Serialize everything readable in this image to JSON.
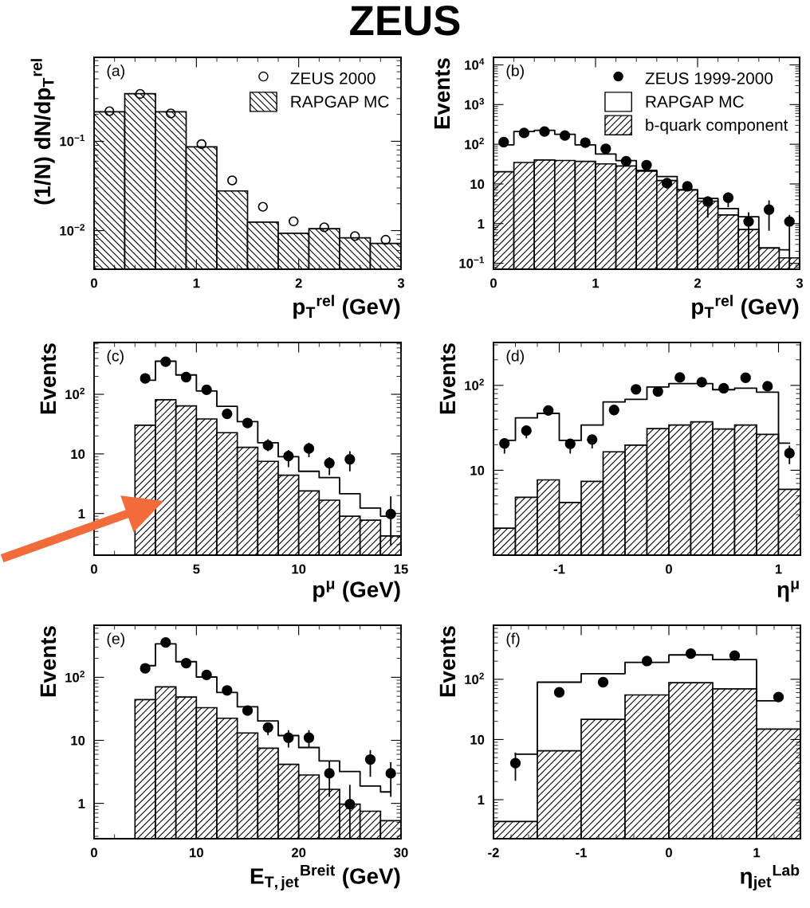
{
  "chart_data": [
    {
      "type": "histogram",
      "title": "ZEUS",
      "ylabel": "(1/N) dN/dp$_{T}$$^{rel}$",
      "xlabel": "p$_{T}$$^{rel}$ (GeV)",
      "annotations": [
        "(a)"
      ],
      "log": true,
      "legend": "top right",
      "bins": [
        0,
        0.3,
        0.6,
        0.9,
        1.2,
        1.5,
        1.8,
        2.1,
        2.4,
        2.7,
        3.0
      ],
      "xlim": [
        0,
        3
      ],
      "xticks": [
        0,
        1,
        2,
        3
      ],
      "ylim": [
        0.0037,
        0.87
      ],
      "yticks": [
        {
          "value": 0.01,
          "label": "10$^{−2}$"
        },
        {
          "value": 0.1,
          "label": "10$^{−1}$"
        }
      ],
      "series": [
        {
          "name": "ZEUS 2000",
          "type": "scatter",
          "marker": "circle",
          "color": "#000000",
          "x": [
            0.15,
            0.45,
            0.75,
            1.05,
            1.35,
            1.65,
            1.95,
            2.25,
            2.55,
            2.85
          ],
          "values": [
            0.217,
            0.339,
            0.205,
            0.093,
            0.0365,
            0.0185,
            0.0127,
            0.0109,
            0.0087,
            0.0079
          ]
        },
        {
          "name": "RAPGAP MC",
          "type": "histogram",
          "color": "#000000",
          "values": [
            0.214,
            0.341,
            0.214,
            0.0867,
            0.0278,
            0.01245,
            0.00934,
            0.0105,
            0.0083,
            0.0072
          ]
        }
      ]
    },
    {
      "type": "histogram",
      "ylabel": "Events",
      "xlabel": "p$_{T}$$^{rel}$ (GeV)",
      "annotations": [
        "(b)"
      ],
      "log": true,
      "legend": "top right",
      "bins": [
        0,
        0.2,
        0.4,
        0.6,
        0.8,
        1.0,
        1.2,
        1.4,
        1.6,
        1.8,
        2.0,
        2.2,
        2.4,
        2.6,
        2.8,
        3.0
      ],
      "xlim": [
        0,
        3
      ],
      "xticks": [
        0,
        1,
        2,
        3
      ],
      "ylim": [
        0.071,
        15500
      ],
      "yticks": [
        {
          "value": 0.1,
          "label": "10$^{−1}$"
        },
        1,
        10,
        {
          "value": 100,
          "label": "10$^{2}$"
        },
        {
          "value": 1000,
          "label": "10$^{3}$"
        },
        {
          "value": 10000,
          "label": "10$^{4}$"
        }
      ],
      "series": [
        {
          "name": "ZEUS 1999-2000",
          "type": "scatter",
          "marker": "circle",
          "color": "#000000",
          "x": [
            0.1,
            0.3,
            0.5,
            0.7,
            0.9,
            1.1,
            1.3,
            1.5,
            1.7,
            1.9,
            2.1,
            2.3,
            2.5,
            2.7,
            2.9
          ],
          "values": [
            113,
            193,
            209,
            166,
            110,
            77,
            37.5,
            29.8,
            10.5,
            8.7,
            3.6,
            4.5,
            1.13,
            2.25,
            1.13
          ],
          "errors": [
            null,
            null,
            null,
            null,
            null,
            null,
            null,
            null,
            [
              7.7,
              13.2
            ],
            [
              6.6,
              10.8
            ],
            [
              1.42,
              4.86
            ],
            [
              2.6,
              6.1
            ],
            [
              0.071,
              1.94
            ],
            [
              0.66,
              3.86
            ],
            [
              0.071,
              1.66
            ]
          ]
        },
        {
          "name": "RAPGAP MC",
          "type": "step",
          "color": "#000000",
          "x": [
            0.1,
            0.3,
            0.5,
            0.7,
            0.9,
            1.1,
            1.3,
            1.5,
            1.7,
            1.9,
            2.1,
            2.3,
            2.5,
            2.7,
            2.9
          ],
          "values": [
            97,
            209,
            225,
            179,
            97,
            57,
            38.6,
            21.9,
            15.4,
            7.1,
            4.3,
            2.4,
            1.49,
            0.244,
            0.219
          ]
        },
        {
          "name": "b-quark component",
          "type": "histogram",
          "color": "#000000",
          "values": [
            20.3,
            34.7,
            40,
            39,
            37,
            32,
            28.4,
            20.9,
            12.2,
            7.1,
            3.7,
            1.66,
            0.71,
            0.244,
            0.137
          ]
        }
      ]
    },
    {
      "type": "histogram",
      "ylabel": "Events",
      "xlabel": "p$^{μ}$ (GeV)",
      "annotations": [
        "(c)"
      ],
      "log": true,
      "bins": [
        2,
        3,
        4,
        5,
        6,
        7,
        8,
        9,
        10,
        11,
        12,
        13,
        14,
        15
      ],
      "xlim": [
        0,
        15
      ],
      "xticks": [
        0,
        5,
        10,
        15
      ],
      "ylim": [
        0.2,
        740
      ],
      "yticks": [
        1,
        10,
        {
          "value": 100,
          "label": "10$^{2}$"
        }
      ],
      "series": [
        {
          "type": "scatter",
          "marker": "circle",
          "color": "#000000",
          "x": [
            2.5,
            3.5,
            4.5,
            5.5,
            6.5,
            7.5,
            8.5,
            9.5,
            10.5,
            11.5,
            12.5,
            13.5,
            14.5
          ],
          "values": [
            185,
            352,
            194,
            119,
            47,
            33,
            13.9,
            9.2,
            12.3,
            7.0,
            8.1,
            null,
            0.98
          ],
          "errors": [
            null,
            null,
            null,
            null,
            null,
            null,
            [
              11.1,
              17.6
            ],
            [
              6.0,
              11.6
            ],
            [
              8.8,
              15.4
            ],
            [
              4.4,
              8.8
            ],
            [
              5.1,
              11.1
            ],
            null,
            [
              0.29,
              1.94
            ]
          ]
        },
        {
          "type": "step",
          "color": "#000000",
          "x": [
            2.5,
            3.5,
            4.5,
            5.5,
            6.5,
            7.5,
            8.5,
            9.5,
            10.5,
            11.5,
            12.5,
            13.5,
            14.5
          ],
          "values": [
            172,
            359,
            211,
            114,
            63,
            34.8,
            15.4,
            9.0,
            5.1,
            4.0,
            2.15,
            1.23,
            0.9
          ]
        },
        {
          "type": "histogram",
          "color": "#000000",
          "values": [
            30.2,
            81,
            64,
            38.6,
            22.7,
            12.9,
            7.5,
            4.4,
            2.39,
            1.67,
            0.9,
            0.77,
            0.42
          ]
        }
      ]
    },
    {
      "type": "histogram",
      "ylabel": "Events",
      "xlabel": "η$^{μ}$",
      "annotations": [
        "(d)"
      ],
      "log": true,
      "bins": [
        -1.6,
        -1.4,
        -1.2,
        -1.0,
        -0.8,
        -0.6,
        -0.4,
        -0.2,
        0,
        0.2,
        0.4,
        0.6,
        0.8,
        1.0,
        1.2
      ],
      "xlim": [
        -1.6,
        1.2
      ],
      "xticks": [
        -1,
        0,
        1
      ],
      "ylim": [
        1,
        320
      ],
      "yticks": [
        10,
        {
          "value": 100,
          "label": "10$^{2}$"
        }
      ],
      "series": [
        {
          "type": "scatter",
          "marker": "circle",
          "color": "#000000",
          "x": [
            -1.5,
            -1.3,
            -1.1,
            -0.9,
            -0.7,
            -0.5,
            -0.3,
            -0.1,
            0.1,
            0.3,
            0.5,
            0.7,
            0.9,
            1.1
          ],
          "values": [
            20.7,
            29.3,
            50.6,
            20.5,
            23.0,
            51.3,
            89.8,
            84.7,
            124,
            109,
            92.5,
            123,
            97.7,
            15.9
          ],
          "errors": [
            [
              15.7,
              23.3
            ],
            [
              23.8,
              33.3
            ],
            null,
            [
              15.7,
              23.3
            ],
            [
              18.1,
              25.9
            ],
            null,
            null,
            null,
            null,
            null,
            null,
            null,
            null,
            [
              11.8,
              19.5
            ]
          ]
        },
        {
          "type": "step",
          "color": "#000000",
          "x": [
            -1.5,
            -1.3,
            -1.1,
            -0.9,
            -0.7,
            -0.5,
            -0.3,
            -0.1,
            0.1,
            0.3,
            0.5,
            0.7,
            0.9,
            1.1
          ],
          "values": [
            22.5,
            41.4,
            46.8,
            22.5,
            34.1,
            63.7,
            68.4,
            95.8,
            105,
            105,
            89,
            92.5,
            83,
            20.9
          ]
        },
        {
          "type": "histogram",
          "color": "#000000",
          "values": [
            2.08,
            4.8,
            7.7,
            4.17,
            7.4,
            16.5,
            19.8,
            31,
            34.1,
            37.2,
            30.6,
            34.1,
            26.5,
            5.97
          ]
        }
      ]
    },
    {
      "type": "histogram",
      "ylabel": "Events",
      "xlabel": "E$_{T,jet}$$^{Breit}$ (GeV)",
      "annotations": [
        "(e)"
      ],
      "log": true,
      "bins": [
        4,
        6,
        8,
        10,
        12,
        14,
        16,
        18,
        20,
        22,
        24,
        26,
        28,
        30
      ],
      "xlim": [
        0,
        30
      ],
      "xticks": [
        0,
        10,
        20,
        30
      ],
      "ylim": [
        0.275,
        670
      ],
      "yticks": [
        1,
        10,
        {
          "value": 100,
          "label": "10$^{2}$"
        }
      ],
      "series": [
        {
          "type": "scatter",
          "marker": "circle",
          "color": "#000000",
          "x": [
            5,
            7,
            9,
            11,
            13,
            15,
            17,
            19,
            21,
            23,
            25,
            27,
            29
          ],
          "values": [
            139,
            357,
            168,
            109,
            62,
            29.7,
            16,
            11.0,
            11.0,
            3.0,
            0.97,
            4.97,
            3.0
          ],
          "errors": [
            null,
            null,
            null,
            null,
            null,
            null,
            [
              12.1,
              19.0
            ],
            [
              7.7,
              14.5
            ],
            [
              7.7,
              14.5
            ],
            [
              1.27,
              4.7
            ],
            [
              0.275,
              1.97
            ],
            [
              2.64,
              7.0
            ],
            [
              1.27,
              4.5
            ]
          ]
        },
        {
          "type": "step",
          "color": "#000000",
          "x": [
            5,
            7,
            9,
            11,
            13,
            15,
            17,
            19,
            21,
            23,
            25,
            27,
            29
          ],
          "values": [
            153,
            340,
            177,
            101,
            57.4,
            34,
            20.3,
            11.9,
            7.7,
            4.7,
            3.2,
            1.88,
            1.52
          ]
        },
        {
          "type": "histogram",
          "color": "#000000",
          "values": [
            44.3,
            70.5,
            48.7,
            33,
            22.4,
            13.1,
            7.5,
            4.17,
            2.82,
            1.67,
            0.97,
            0.75,
            0.53
          ]
        }
      ]
    },
    {
      "type": "histogram",
      "ylabel": "Events",
      "xlabel": "η$_{jet}$$^{Lab}$",
      "annotations": [
        "(f)"
      ],
      "log": true,
      "bins": [
        -2,
        -1.5,
        -1,
        -0.5,
        0,
        0.5,
        1,
        1.5
      ],
      "xlim": [
        -2,
        1.5
      ],
      "xticks": [
        -2,
        -1,
        0,
        1
      ],
      "ylim": [
        0.225,
        790
      ],
      "yticks": [
        1,
        10,
        {
          "value": 100,
          "label": "10$^{2}$"
        }
      ],
      "series": [
        {
          "type": "scatter",
          "marker": "circle",
          "color": "#000000",
          "x": [
            -1.75,
            -1.25,
            -0.75,
            -0.25,
            0.25,
            0.75,
            1.25
          ],
          "values": [
            4.05,
            60.8,
            89.5,
            201,
            267,
            247,
            50.7
          ],
          "errors": [
            [
              2.06,
              6.08
            ],
            null,
            null,
            null,
            null,
            null,
            null
          ]
        },
        {
          "type": "step",
          "color": "#000000",
          "x": [
            -1.75,
            -1.25,
            -0.75,
            -0.25,
            0.25,
            0.75,
            1.25
          ],
          "values": [
            5.7,
            89.5,
            124,
            191,
            254,
            212,
            44
          ]
        },
        {
          "type": "histogram",
          "color": "#000000",
          "values": [
            0.435,
            6.5,
            21.6,
            55,
            87.7,
            69.3,
            14.9
          ]
        }
      ]
    }
  ]
}
